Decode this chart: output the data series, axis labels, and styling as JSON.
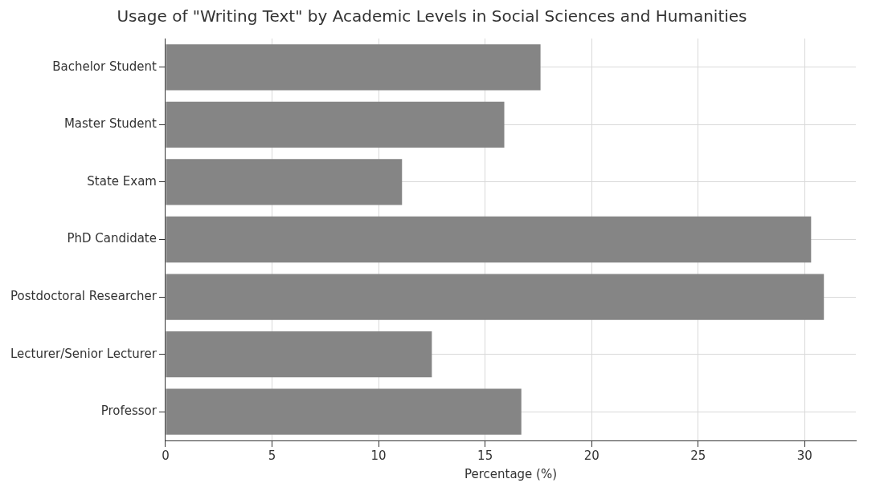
{
  "chart_data": {
    "type": "bar",
    "orientation": "horizontal",
    "title": "Usage of \"Writing Text\" by Academic Levels in Social Sciences and Humanities",
    "xlabel": "Percentage (%)",
    "categories": [
      "Bachelor Student",
      "Master Student",
      "State Exam",
      "PhD Candidate",
      "Postdoctoral Researcher",
      "Lecturer/Senior Lecturer",
      "Professor"
    ],
    "values": [
      17.6,
      15.9,
      11.1,
      30.3,
      30.9,
      12.5,
      16.7
    ],
    "color": "#858585",
    "xlim": [
      0,
      32.4
    ],
    "xticks": [
      0,
      5,
      10,
      15,
      20,
      25,
      30
    ],
    "grid": true
  }
}
